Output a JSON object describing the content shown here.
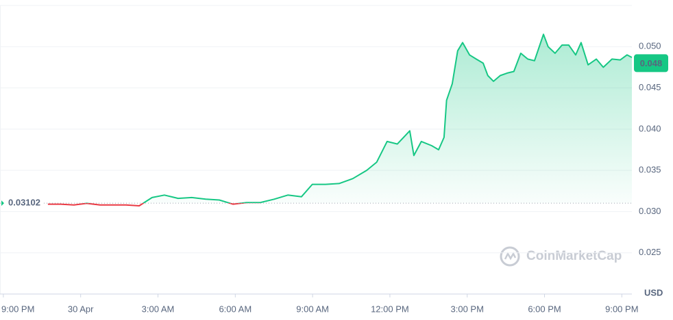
{
  "chart_data": {
    "type": "line",
    "x": [
      1.73,
      2.23,
      2.74,
      3.24,
      3.75,
      4.26,
      4.76,
      5.27,
      5.77,
      6.25,
      6.78,
      7.31,
      7.85,
      8.38,
      8.91,
      9.44,
      9.97,
      10.51,
      11.04,
      11.57,
      11.99,
      12.5,
      13.03,
      13.56,
      14.1,
      14.49,
      14.89,
      15.29,
      15.77,
      15.93,
      16.22,
      16.62,
      16.89,
      17.1,
      17.2,
      17.42,
      17.63,
      17.82,
      18.09,
      18.35,
      18.62,
      18.8,
      19.02,
      19.28,
      19.55,
      19.81,
      20.08,
      20.35,
      20.61,
      20.96,
      21.14,
      21.41,
      21.68,
      21.94,
      22.21,
      22.42,
      22.69,
      23.01,
      23.28,
      23.62,
      23.94,
      24.2,
      24.39
    ],
    "values": [
      0.0309,
      0.0309,
      0.0308,
      0.031,
      0.0308,
      0.0308,
      0.0308,
      0.0307,
      0.0317,
      0.032,
      0.0316,
      0.0317,
      0.0315,
      0.0314,
      0.0309,
      0.0311,
      0.0311,
      0.0315,
      0.032,
      0.0318,
      0.0333,
      0.0333,
      0.0334,
      0.034,
      0.035,
      0.036,
      0.0385,
      0.0382,
      0.0398,
      0.0368,
      0.0385,
      0.038,
      0.0375,
      0.039,
      0.0435,
      0.0455,
      0.0495,
      0.0505,
      0.049,
      0.0485,
      0.048,
      0.0465,
      0.0458,
      0.0465,
      0.0468,
      0.047,
      0.0492,
      0.0485,
      0.0483,
      0.0515,
      0.05,
      0.0492,
      0.0502,
      0.0502,
      0.049,
      0.0505,
      0.0478,
      0.0485,
      0.0475,
      0.0485,
      0.0484,
      0.049,
      0.0487
    ],
    "color": "#16c784",
    "down_color": "#ea3943",
    "baseline": 0.03102,
    "current_price": 0.048,
    "currency": "USD",
    "watermark": "CoinMarketCap",
    "xlim": [
      -0.13,
      24.39
    ],
    "xticks": [
      {
        "value": 0,
        "label": "9:00 PM"
      },
      {
        "value": 3,
        "label": "30 Apr"
      },
      {
        "value": 6,
        "label": "3:00 AM"
      },
      {
        "value": 9,
        "label": "6:00 AM"
      },
      {
        "value": 12,
        "label": "9:00 AM"
      },
      {
        "value": 15,
        "label": "12:00 PM"
      },
      {
        "value": 18,
        "label": "3:00 PM"
      },
      {
        "value": 21,
        "label": "6:00 PM"
      },
      {
        "value": 24,
        "label": "9:00 PM"
      }
    ],
    "ylim": [
      0.02,
      0.055
    ],
    "yticks": [
      0.025,
      {
        "value": 0.03,
        "label": "0.030"
      },
      0.035,
      {
        "value": 0.04,
        "label": "0.040"
      },
      0.045,
      {
        "value": 0.05,
        "label": "0.050"
      }
    ],
    "grid": true
  }
}
